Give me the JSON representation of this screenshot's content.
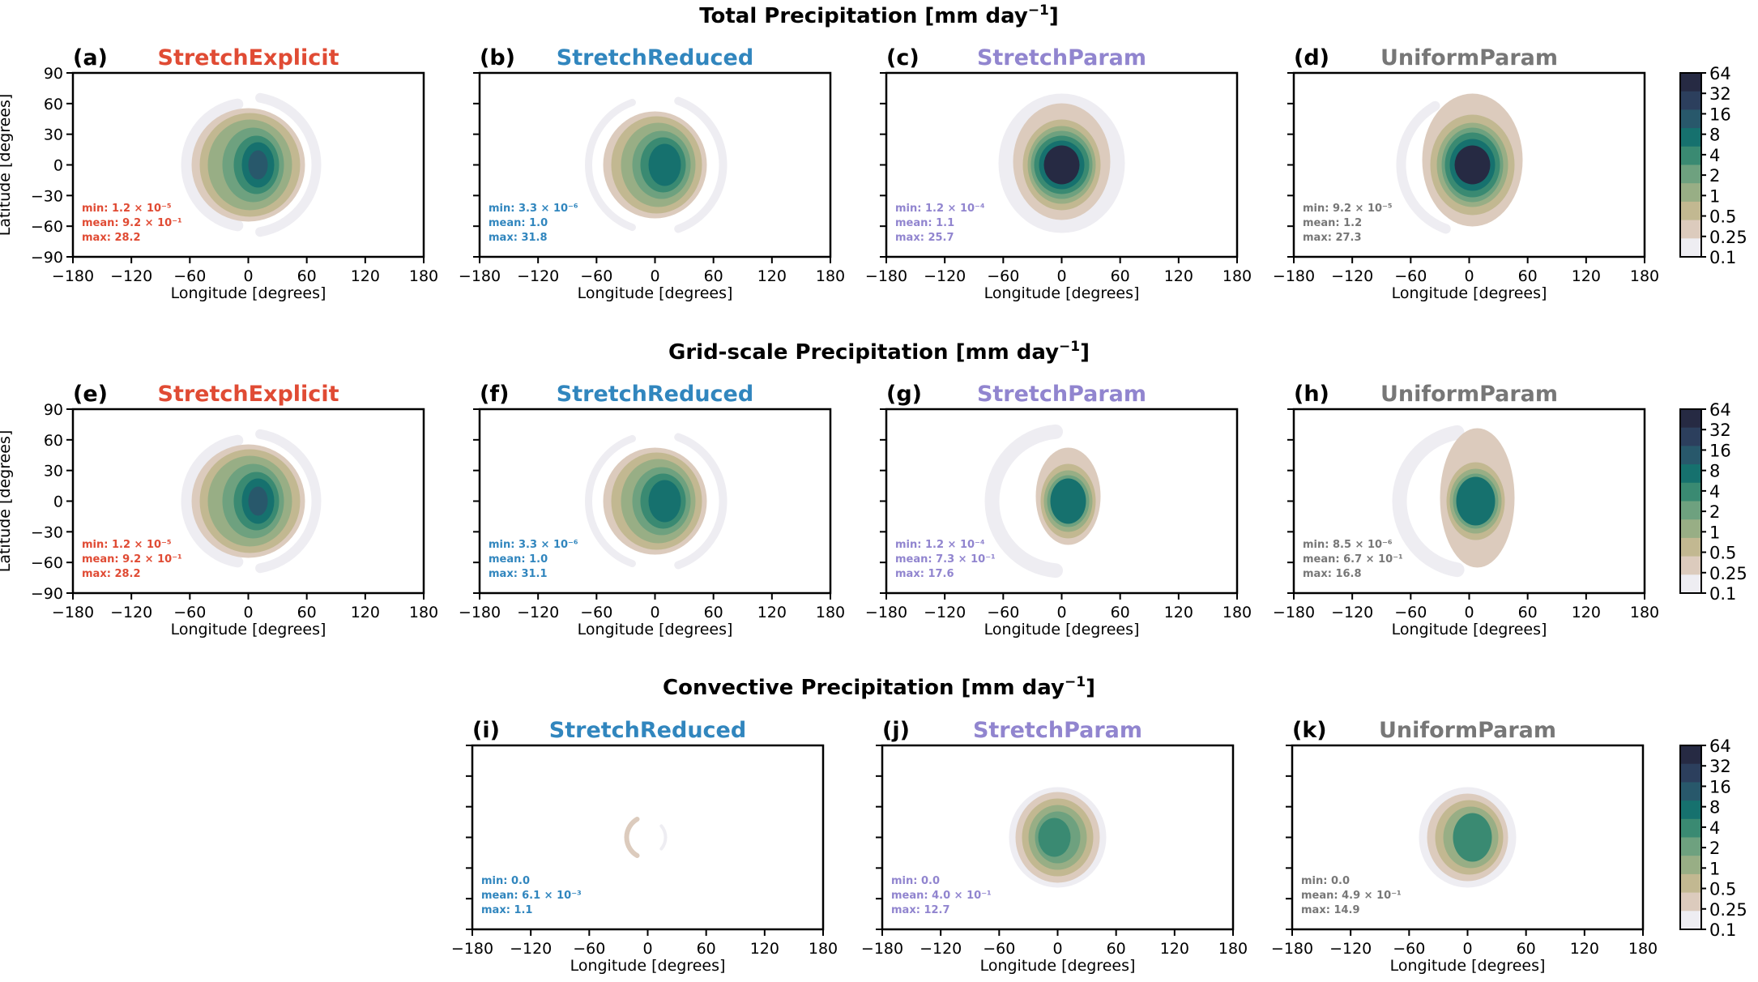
{
  "figure": {
    "row_titles": [
      {
        "label": "Total Precipitation [mm day",
        "sup": "−1",
        "close": "]"
      },
      {
        "label": "Grid-scale Precipitation [mm day",
        "sup": "−1",
        "close": "]"
      },
      {
        "label": "Convective Precipitation [mm day",
        "sup": "−1",
        "close": "]"
      }
    ],
    "colorbar": {
      "ticks": [
        "64",
        "32",
        "16",
        "8",
        "4",
        "2",
        "1",
        "0.5",
        "0.25",
        "0.1"
      ],
      "colors": [
        "#262a43",
        "#2c3f5d",
        "#28586b",
        "#16716e",
        "#3a8a72",
        "#6ea17f",
        "#98ae85",
        "#c2b891",
        "#dccbbd",
        "#eeedf2"
      ]
    },
    "model_colors": {
      "StretchExplicit": "#e04b34",
      "StretchReduced": "#3186be",
      "StretchParam": "#9185cf",
      "UniformParam": "#777777"
    }
  },
  "chart_data": [
    {
      "type": "heatmap",
      "panel": "(a)",
      "title": "StretchExplicit",
      "field": "Total Precipitation",
      "xlabel": "Longitude [degrees]",
      "ylabel": "Latitude [degrees]",
      "xlim": [
        -180,
        180
      ],
      "ylim": [
        -90,
        90
      ],
      "xticks": [
        -180,
        -120,
        -60,
        0,
        60,
        120,
        180
      ],
      "yticks": [
        90,
        60,
        30,
        0,
        -30,
        -60,
        -90
      ],
      "stats": {
        "min": "1.2 × 10⁻⁵",
        "mean": "9.2 × 10⁻¹",
        "max": "28.2"
      }
    },
    {
      "type": "heatmap",
      "panel": "(b)",
      "title": "StretchReduced",
      "field": "Total Precipitation",
      "xlabel": "Longitude [degrees]",
      "xlim": [
        -180,
        180
      ],
      "ylim": [
        -90,
        90
      ],
      "xticks": [
        -180,
        -120,
        -60,
        0,
        60,
        120,
        180
      ],
      "stats": {
        "min": "3.3 × 10⁻⁶",
        "mean": "1.0",
        "max": "31.8"
      }
    },
    {
      "type": "heatmap",
      "panel": "(c)",
      "title": "StretchParam",
      "field": "Total Precipitation",
      "xlabel": "Longitude [degrees]",
      "xlim": [
        -180,
        180
      ],
      "ylim": [
        -90,
        90
      ],
      "xticks": [
        -180,
        -120,
        -60,
        0,
        60,
        120,
        180
      ],
      "stats": {
        "min": "1.2 × 10⁻⁴",
        "mean": "1.1",
        "max": "25.7"
      }
    },
    {
      "type": "heatmap",
      "panel": "(d)",
      "title": "UniformParam",
      "field": "Total Precipitation",
      "xlabel": "Longitude [degrees]",
      "xlim": [
        -180,
        180
      ],
      "ylim": [
        -90,
        90
      ],
      "xticks": [
        -180,
        -120,
        -60,
        0,
        60,
        120,
        180
      ],
      "stats": {
        "min": "9.2 × 10⁻⁵",
        "mean": "1.2",
        "max": "27.3"
      }
    },
    {
      "type": "heatmap",
      "panel": "(e)",
      "title": "StretchExplicit",
      "field": "Grid-scale Precipitation",
      "xlabel": "Longitude [degrees]",
      "ylabel": "Latitude [degrees]",
      "xlim": [
        -180,
        180
      ],
      "ylim": [
        -90,
        90
      ],
      "xticks": [
        -180,
        -120,
        -60,
        0,
        60,
        120,
        180
      ],
      "yticks": [
        90,
        60,
        30,
        0,
        -30,
        -60,
        -90
      ],
      "stats": {
        "min": "1.2 × 10⁻⁵",
        "mean": "9.2 × 10⁻¹",
        "max": "28.2"
      }
    },
    {
      "type": "heatmap",
      "panel": "(f)",
      "title": "StretchReduced",
      "field": "Grid-scale Precipitation",
      "xlabel": "Longitude [degrees]",
      "xlim": [
        -180,
        180
      ],
      "ylim": [
        -90,
        90
      ],
      "xticks": [
        -180,
        -120,
        -60,
        0,
        60,
        120,
        180
      ],
      "stats": {
        "min": "3.3 × 10⁻⁶",
        "mean": "1.0",
        "max": "31.1"
      }
    },
    {
      "type": "heatmap",
      "panel": "(g)",
      "title": "StretchParam",
      "field": "Grid-scale Precipitation",
      "xlabel": "Longitude [degrees]",
      "xlim": [
        -180,
        180
      ],
      "ylim": [
        -90,
        90
      ],
      "xticks": [
        -180,
        -120,
        -60,
        0,
        60,
        120,
        180
      ],
      "stats": {
        "min": "1.2 × 10⁻⁴",
        "mean": "7.3 × 10⁻¹",
        "max": "17.6"
      }
    },
    {
      "type": "heatmap",
      "panel": "(h)",
      "title": "UniformParam",
      "field": "Grid-scale Precipitation",
      "xlabel": "Longitude [degrees]",
      "xlim": [
        -180,
        180
      ],
      "ylim": [
        -90,
        90
      ],
      "xticks": [
        -180,
        -120,
        -60,
        0,
        60,
        120,
        180
      ],
      "stats": {
        "min": "8.5 × 10⁻⁶",
        "mean": "6.7 × 10⁻¹",
        "max": "16.8"
      }
    },
    {
      "type": "heatmap",
      "panel": "(i)",
      "title": "StretchReduced",
      "field": "Convective Precipitation",
      "xlabel": "Longitude [degrees]",
      "xlim": [
        -180,
        180
      ],
      "ylim": [
        -90,
        90
      ],
      "xticks": [
        -180,
        -120,
        -60,
        0,
        60,
        120,
        180
      ],
      "stats": {
        "min": "0.0",
        "mean": "6.1 × 10⁻³",
        "max": "1.1"
      }
    },
    {
      "type": "heatmap",
      "panel": "(j)",
      "title": "StretchParam",
      "field": "Convective Precipitation",
      "xlabel": "Longitude [degrees]",
      "xlim": [
        -180,
        180
      ],
      "ylim": [
        -90,
        90
      ],
      "xticks": [
        -180,
        -120,
        -60,
        0,
        60,
        120,
        180
      ],
      "stats": {
        "min": "0.0",
        "mean": "4.0 × 10⁻¹",
        "max": "12.7"
      }
    },
    {
      "type": "heatmap",
      "panel": "(k)",
      "title": "UniformParam",
      "field": "Convective Precipitation",
      "xlabel": "Longitude [degrees]",
      "xlim": [
        -180,
        180
      ],
      "ylim": [
        -90,
        90
      ],
      "xticks": [
        -180,
        -120,
        -60,
        0,
        60,
        120,
        180
      ],
      "stats": {
        "min": "0.0",
        "mean": "4.9 × 10⁻¹",
        "max": "14.9"
      }
    }
  ]
}
